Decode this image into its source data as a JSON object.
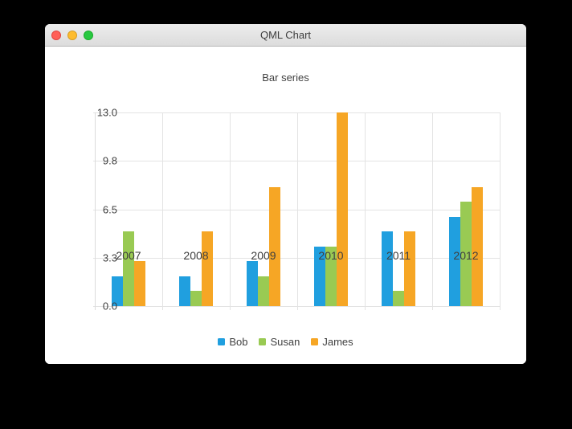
{
  "window": {
    "title": "QML Chart",
    "traffic_lights": [
      {
        "name": "close-button",
        "color": "#ff5f57"
      },
      {
        "name": "minimize-button",
        "color": "#febc2e"
      },
      {
        "name": "zoom-button",
        "color": "#28c840"
      }
    ]
  },
  "chart_data": {
    "type": "bar",
    "title": "Bar series",
    "categories": [
      "2007",
      "2008",
      "2009",
      "2010",
      "2011",
      "2012"
    ],
    "series": [
      {
        "name": "Bob",
        "color": "#209fdf",
        "values": [
          2,
          2,
          3,
          4,
          5,
          6
        ]
      },
      {
        "name": "Susan",
        "color": "#99ca53",
        "values": [
          5,
          1,
          2,
          4,
          1,
          7
        ]
      },
      {
        "name": "James",
        "color": "#f6a625",
        "values": [
          3,
          5,
          8,
          13,
          5,
          8
        ]
      }
    ],
    "xlabel": "",
    "ylabel": "",
    "ylim": [
      0,
      13
    ],
    "y_tick_labels": [
      "0.0",
      "3.3",
      "6.5",
      "9.8",
      "13.0"
    ],
    "grid": true,
    "legend_position": "bottom"
  }
}
